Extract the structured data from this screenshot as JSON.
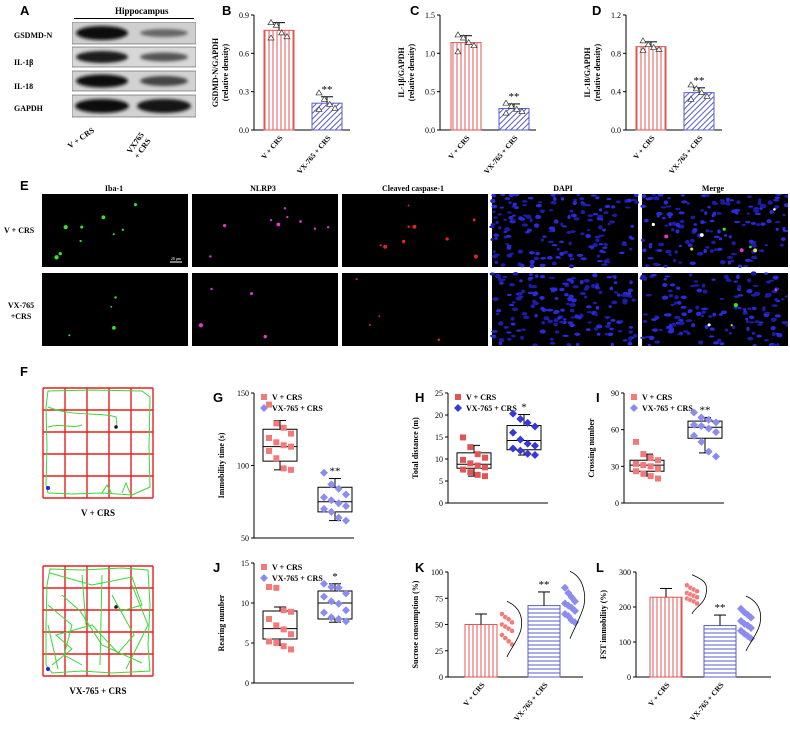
{
  "panels": {
    "A": "A",
    "B": "B",
    "C": "C",
    "D": "D",
    "E": "E",
    "F": "F",
    "G": "G",
    "H": "H",
    "I": "I",
    "J": "J",
    "K": "K",
    "L": "L"
  },
  "blot": {
    "title": "Hippocampus",
    "rows": [
      "GSDMD-N",
      "IL-1β",
      "IL-18",
      "GAPDH"
    ],
    "lanes": [
      "V + CRS",
      "VX765\n+ CRS"
    ]
  },
  "if_panel": {
    "columns": [
      "Iba-1",
      "NLRP3",
      "Cleaved caspase-1",
      "DAPI",
      "Merge"
    ],
    "rows": [
      "V + CRS",
      "VX-765\n+CRS"
    ],
    "scalebar": "20 μm"
  },
  "maze": {
    "captions": [
      "V + CRS",
      "VX-765 + CRS"
    ]
  },
  "colors": {
    "red": "#e05555",
    "blue": "#5a5acc",
    "pink": "#f27a7a",
    "violet": "#8c8cf0",
    "maze_red": "#e81e1e",
    "maze_green": "#38d838"
  },
  "chart_data": [
    {
      "id": "B",
      "type": "bar",
      "ylabel": "GSDMD-N/GAPDH\n(relative density)",
      "categories": [
        "V + CRS",
        "VX-765 + CRS"
      ],
      "values": [
        0.78,
        0.21
      ],
      "errors": [
        0.06,
        0.05
      ],
      "ylim": [
        0,
        0.9
      ],
      "yticks": [
        "0.0",
        "0.3",
        "0.6",
        "0.9"
      ],
      "sig": [
        "",
        "**"
      ],
      "points": [
        [
          0.84,
          0.82,
          0.76,
          0.73,
          0.72
        ],
        [
          0.29,
          0.24,
          0.2,
          0.17,
          0.16
        ]
      ]
    },
    {
      "id": "C",
      "type": "bar",
      "ylabel": "IL-1β/GAPDH\n(relative density)",
      "categories": [
        "V + CRS",
        "VX-765 + CRS"
      ],
      "values": [
        1.14,
        0.28
      ],
      "errors": [
        0.09,
        0.06
      ],
      "ylim": [
        0,
        1.5
      ],
      "yticks": [
        "0.0",
        "0.5",
        "1.0",
        "1.5"
      ],
      "sig": [
        "",
        "**"
      ],
      "points": [
        [
          1.24,
          1.2,
          1.14,
          1.1,
          1.02
        ],
        [
          0.35,
          0.31,
          0.27,
          0.24,
          0.22
        ]
      ]
    },
    {
      "id": "D",
      "type": "bar",
      "ylabel": "IL-18/GAPDH\n(relative density)",
      "categories": [
        "V + CRS",
        "VX-765 + CRS"
      ],
      "values": [
        0.87,
        0.39
      ],
      "errors": [
        0.05,
        0.05
      ],
      "ylim": [
        0,
        1.2
      ],
      "yticks": [
        "0.0",
        "0.4",
        "0.8",
        "1.2"
      ],
      "sig": [
        "",
        "**"
      ],
      "points": [
        [
          0.93,
          0.89,
          0.86,
          0.84,
          0.83
        ],
        [
          0.47,
          0.43,
          0.39,
          0.35,
          0.32
        ]
      ]
    },
    {
      "id": "G",
      "type": "box",
      "ylabel": "Immobility time (s)",
      "legend": [
        "V + CRS",
        "VX-765 + CRS"
      ],
      "ylim": [
        50,
        150
      ],
      "yticks": [
        "50",
        "100",
        "150"
      ],
      "sig": [
        "",
        "**"
      ],
      "boxes": [
        {
          "q1": 103,
          "med": 113,
          "q3": 125,
          "lo": 97,
          "hi": 131
        },
        {
          "q1": 68,
          "med": 75,
          "q3": 85,
          "lo": 62,
          "hi": 91
        }
      ],
      "points": [
        [
          142,
          129,
          126,
          122,
          119,
          116,
          114,
          113,
          110,
          105,
          98,
          97
        ],
        [
          95,
          87,
          84,
          80,
          78,
          76,
          74,
          72,
          70,
          68,
          64,
          62
        ]
      ]
    },
    {
      "id": "H",
      "type": "box",
      "ylabel": "Total distance (m)",
      "legend": [
        "V + CRS",
        "VX-765 + CRS"
      ],
      "ylim": [
        0,
        25
      ],
      "yticks": [
        "0",
        "5",
        "10",
        "15",
        "20",
        "25"
      ],
      "sig": [
        "",
        "*"
      ],
      "boxes": [
        {
          "q1": 7.9,
          "med": 8.8,
          "q3": 11.4,
          "lo": 6.1,
          "hi": 13.1
        },
        {
          "q1": 12.1,
          "med": 14.2,
          "q3": 17.6,
          "lo": 10.9,
          "hi": 20.1
        }
      ],
      "points": [
        [
          14.9,
          12.7,
          11.1,
          10.3,
          9.8,
          9.0,
          8.5,
          8.1,
          7.6,
          7.0,
          6.4,
          6.1
        ],
        [
          20.3,
          19.1,
          18.2,
          17.4,
          16.0,
          14.4,
          13.5,
          13.0,
          12.4,
          11.9,
          11.2,
          10.9
        ]
      ]
    },
    {
      "id": "I",
      "type": "box",
      "ylabel": "Crossing number",
      "legend": [
        "V + CRS",
        "VX-765 + CRS"
      ],
      "ylim": [
        0,
        90
      ],
      "yticks": [
        "0",
        "30",
        "60",
        "90"
      ],
      "sig": [
        "",
        "**"
      ],
      "boxes": [
        {
          "q1": 26,
          "med": 31,
          "q3": 35,
          "lo": 22,
          "hi": 40
        },
        {
          "q1": 53,
          "med": 62,
          "q3": 67,
          "lo": 41,
          "hi": 70
        }
      ],
      "points": [
        [
          50,
          40,
          37,
          35,
          32,
          31,
          30,
          28,
          26,
          24,
          22,
          20
        ],
        [
          74,
          70,
          68,
          66,
          64,
          63,
          61,
          58,
          55,
          50,
          42,
          38
        ]
      ]
    },
    {
      "id": "J",
      "type": "box",
      "ylabel": "Rearing number",
      "legend": [
        "V + CRS",
        "VX-765 + CRS"
      ],
      "ylim": [
        0,
        15
      ],
      "yticks": [
        "0",
        "5",
        "10",
        "15"
      ],
      "sig": [
        "",
        "*"
      ],
      "boxes": [
        {
          "q1": 5.5,
          "med": 6.8,
          "q3": 9.0,
          "lo": 4.7,
          "hi": 9.5
        },
        {
          "q1": 8.0,
          "med": 10.0,
          "q3": 11.5,
          "lo": 7.6,
          "hi": 12.4
        }
      ],
      "points": [
        [
          12.0,
          11.9,
          9.1,
          8.9,
          8.0,
          7.2,
          6.7,
          6.1,
          5.2,
          5.0,
          4.6,
          4.2
        ],
        [
          12.4,
          12.0,
          11.9,
          11.2,
          10.8,
          10.2,
          9.9,
          9.1,
          8.8,
          8.2,
          8.0,
          7.7
        ]
      ]
    },
    {
      "id": "K",
      "type": "bar",
      "ylabel": "Sucrose consumption (%)",
      "categories": [
        "V + CRS",
        "VX-765 + CRS"
      ],
      "values": [
        50,
        68
      ],
      "errors": [
        10,
        13
      ],
      "ylim": [
        0,
        100
      ],
      "yticks": [
        "0",
        "25",
        "50",
        "75",
        "100"
      ],
      "sig": [
        "",
        "**"
      ],
      "points": [
        [
          60,
          57,
          55,
          52,
          50,
          48,
          46,
          44,
          40,
          37,
          34,
          31
        ],
        [
          85,
          80,
          76,
          72,
          70,
          68,
          66,
          63,
          60,
          58,
          54,
          52
        ]
      ]
    },
    {
      "id": "L",
      "type": "bar",
      "ylabel": "FST immobility (%)",
      "categories": [
        "V + CRS",
        "VX-765 + CRS"
      ],
      "values": [
        228,
        147
      ],
      "errors": [
        25,
        30
      ],
      "ylim": [
        0,
        300
      ],
      "yticks": [
        "0",
        "100",
        "200",
        "300"
      ],
      "sig": [
        "",
        "**"
      ],
      "points": [
        [
          262,
          255,
          250,
          245,
          240,
          236,
          232,
          228,
          224,
          220,
          216,
          210
        ],
        [
          195,
          185,
          178,
          170,
          160,
          152,
          147,
          140,
          132,
          124,
          117,
          110
        ]
      ]
    }
  ]
}
